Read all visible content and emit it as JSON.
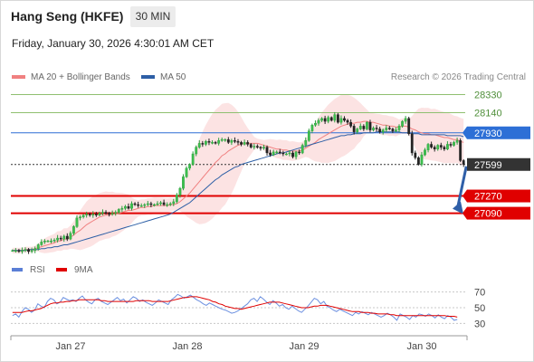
{
  "header": {
    "title": "Hang Seng (HKFE)",
    "timeframe": "30 MIN",
    "datetime": "Friday, January 30, 2026 4:30:01 AM CET"
  },
  "legend": {
    "items": [
      {
        "label": "MA 20 + Bollinger Bands",
        "color": "#f08080"
      },
      {
        "label": "MA 50",
        "color": "#2d5fa6"
      }
    ],
    "copyright": "Research © 2026 Trading Central"
  },
  "rsi_legend": {
    "items": [
      {
        "label": "RSI",
        "color": "#5b7fd6"
      },
      {
        "label": "9MA",
        "color": "#e00000"
      }
    ]
  },
  "chart_data": [
    {
      "type": "candlestick",
      "title": "Hang Seng (HKFE)",
      "timeframe": "30 MIN",
      "x_labels": [
        "Jan 27",
        "Jan 28",
        "Jan 29",
        "Jan 30"
      ],
      "price_levels": [
        {
          "value": 28330,
          "label": "28330",
          "kind": "resistance",
          "color": "#8fc070"
        },
        {
          "value": 28140,
          "label": "28140",
          "kind": "resistance",
          "color": "#8fc070"
        },
        {
          "value": 27930,
          "label": "27930",
          "kind": "pivot",
          "color": "#2d6fd6"
        },
        {
          "value": 27599,
          "label": "27599",
          "kind": "last",
          "color": "#333333"
        },
        {
          "value": 27270,
          "label": "27270",
          "kind": "support",
          "color": "#e00000"
        },
        {
          "value": 27090,
          "label": "27090",
          "kind": "support",
          "color": "#e00000"
        }
      ],
      "ylim": [
        26670,
        28410
      ],
      "close_series": [
        26700,
        26700,
        26690,
        26700,
        26710,
        26690,
        26700,
        26720,
        26760,
        26790,
        26800,
        26800,
        26800,
        26810,
        26830,
        26820,
        26850,
        26820,
        26880,
        26950,
        27040,
        27050,
        27070,
        27080,
        27070,
        27080,
        27070,
        27090,
        27100,
        27090,
        27080,
        27090,
        27100,
        27130,
        27140,
        27160,
        27140,
        27190,
        27180,
        27170,
        27170,
        27180,
        27190,
        27180,
        27180,
        27190,
        27200,
        27180,
        27180,
        27190,
        27210,
        27280,
        27350,
        27470,
        27560,
        27600,
        27710,
        27780,
        27820,
        27810,
        27840,
        27830,
        27830,
        27820,
        27850,
        27860,
        27860,
        27830,
        27850,
        27840,
        27830,
        27810,
        27830,
        27810,
        27780,
        27790,
        27780,
        27770,
        27780,
        27720,
        27700,
        27730,
        27730,
        27720,
        27710,
        27710,
        27720,
        27680,
        27730,
        27720,
        27800,
        27850,
        27950,
        28010,
        28030,
        28060,
        28080,
        28050,
        28090,
        28060,
        28120,
        28040,
        28080,
        28060,
        28040,
        28000,
        27940,
        27970,
        28000,
        27970,
        28040,
        27960,
        27980,
        27970,
        27940,
        27960,
        27980,
        27970,
        27950,
        27960,
        28000,
        28050,
        28080,
        27920,
        27720,
        27670,
        27600,
        27700,
        27750,
        27810,
        27780,
        27760,
        27800,
        27780,
        27760,
        27810,
        27800,
        27830,
        27850,
        27640,
        27599
      ],
      "ma20_series": [
        26700,
        26700,
        26700,
        26700,
        26710,
        26710,
        26710,
        26720,
        26730,
        26740,
        26750,
        26760,
        26770,
        26780,
        26800,
        26800,
        26820,
        26820,
        26840,
        26860,
        26890,
        26910,
        26940,
        26970,
        26990,
        27010,
        27030,
        27050,
        27060,
        27070,
        27070,
        27080,
        27080,
        27090,
        27100,
        27110,
        27120,
        27120,
        27130,
        27140,
        27150,
        27150,
        27160,
        27160,
        27170,
        27170,
        27170,
        27170,
        27170,
        27180,
        27180,
        27190,
        27210,
        27240,
        27270,
        27300,
        27340,
        27380,
        27420,
        27460,
        27500,
        27540,
        27580,
        27620,
        27650,
        27690,
        27710,
        27740,
        27760,
        27780,
        27800,
        27810,
        27820,
        27820,
        27820,
        27820,
        27820,
        27810,
        27800,
        27790,
        27780,
        27770,
        27760,
        27760,
        27750,
        27750,
        27740,
        27740,
        27740,
        27740,
        27750,
        27770,
        27790,
        27810,
        27830,
        27860,
        27880,
        27900,
        27920,
        27940,
        27960,
        27980,
        28000,
        28010,
        28020,
        28030,
        28030,
        28040,
        28040,
        28050,
        28050,
        28040,
        28040,
        28030,
        28020,
        28010,
        28010,
        28000,
        28000,
        27990,
        27990,
        28000,
        28000,
        27990,
        27970,
        27960,
        27940,
        27930,
        27920,
        27920,
        27910,
        27910,
        27900,
        27890,
        27880,
        27880,
        27870,
        27860,
        27860,
        27840,
        27830
      ],
      "ma50_series": [
        26700,
        26700,
        26700,
        26700,
        26700,
        26710,
        26710,
        26710,
        26710,
        26720,
        26720,
        26730,
        26730,
        26740,
        26740,
        26750,
        26760,
        26760,
        26770,
        26780,
        26790,
        26800,
        26810,
        26820,
        26830,
        26840,
        26850,
        26860,
        26870,
        26880,
        26890,
        26900,
        26910,
        26920,
        26930,
        26940,
        26950,
        26960,
        26970,
        26980,
        26990,
        27000,
        27010,
        27020,
        27030,
        27040,
        27050,
        27060,
        27070,
        27080,
        27100,
        27120,
        27140,
        27160,
        27180,
        27200,
        27230,
        27260,
        27290,
        27320,
        27350,
        27380,
        27410,
        27440,
        27460,
        27490,
        27510,
        27530,
        27550,
        27570,
        27580,
        27600,
        27610,
        27620,
        27630,
        27640,
        27650,
        27660,
        27670,
        27680,
        27690,
        27700,
        27710,
        27720,
        27720,
        27730,
        27740,
        27750,
        27760,
        27770,
        27780,
        27790,
        27800,
        27810,
        27820,
        27830,
        27840,
        27850,
        27860,
        27870,
        27880,
        27890,
        27900,
        27900,
        27910,
        27910,
        27920,
        27920,
        27920,
        27930,
        27930,
        27930,
        27930,
        27940,
        27940,
        27940,
        27940,
        27940,
        27940,
        27940,
        27940,
        27930,
        27930,
        27930,
        27920,
        27920,
        27920,
        27910,
        27910,
        27910,
        27910,
        27910,
        27910,
        27910,
        27910,
        27900,
        27900,
        27900,
        27900,
        27900,
        27890
      ]
    },
    {
      "type": "line",
      "title": "RSI",
      "y_ticks": [
        70,
        50,
        30
      ],
      "ylim": [
        20,
        80
      ],
      "series": [
        {
          "name": "RSI",
          "values": [
            40,
            42,
            38,
            45,
            50,
            48,
            44,
            47,
            55,
            52,
            50,
            58,
            62,
            60,
            55,
            57,
            63,
            61,
            59,
            60,
            58,
            62,
            65,
            60,
            57,
            55,
            60,
            62,
            58,
            56,
            54,
            57,
            60,
            63,
            59,
            61,
            56,
            60,
            64,
            62,
            58,
            60,
            57,
            55,
            53,
            56,
            60,
            58,
            56,
            54,
            60,
            63,
            67,
            65,
            62,
            64,
            66,
            63,
            60,
            58,
            55,
            53,
            56,
            54,
            52,
            50,
            48,
            47,
            45,
            43,
            44,
            46,
            49,
            52,
            55,
            60,
            62,
            58,
            64,
            61,
            57,
            54,
            59,
            56,
            52,
            54,
            50,
            48,
            52,
            49,
            46,
            44,
            48,
            52,
            57,
            62,
            60,
            55,
            58,
            52,
            50,
            47,
            45,
            48,
            46,
            44,
            42,
            40,
            44,
            42,
            45,
            43,
            41,
            44,
            42,
            40,
            38,
            40,
            43,
            41,
            38,
            34,
            42,
            40,
            38,
            35,
            40,
            38,
            42,
            41,
            39,
            42,
            40,
            37,
            41,
            38,
            36,
            40,
            38,
            34,
            35
          ]
        },
        {
          "name": "9MA",
          "values": [
            44,
            44,
            44,
            44,
            45,
            46,
            46,
            47,
            48,
            49,
            51,
            53,
            55,
            56,
            56,
            57,
            57,
            58,
            58,
            59,
            59,
            60,
            60,
            60,
            60,
            60,
            60,
            60,
            59,
            59,
            58,
            58,
            58,
            58,
            58,
            58,
            58,
            58,
            58,
            59,
            59,
            59,
            59,
            59,
            58,
            58,
            58,
            58,
            58,
            58,
            59,
            60,
            61,
            62,
            63,
            63,
            64,
            64,
            64,
            63,
            62,
            61,
            60,
            58,
            57,
            55,
            54,
            52,
            51,
            50,
            49,
            49,
            48,
            49,
            50,
            51,
            52,
            53,
            54,
            55,
            56,
            57,
            57,
            57,
            57,
            56,
            55,
            54,
            53,
            52,
            51,
            50,
            50,
            50,
            51,
            52,
            52,
            53,
            53,
            53,
            52,
            51,
            50,
            49,
            48,
            47,
            46,
            45,
            45,
            45,
            44,
            44,
            44,
            43,
            43,
            42,
            42,
            42,
            42,
            41,
            41,
            40,
            40,
            40,
            40,
            40,
            40,
            40,
            40,
            40,
            40,
            40,
            40,
            40,
            40,
            40,
            40,
            39,
            39,
            39,
            38
          ]
        }
      ]
    }
  ]
}
